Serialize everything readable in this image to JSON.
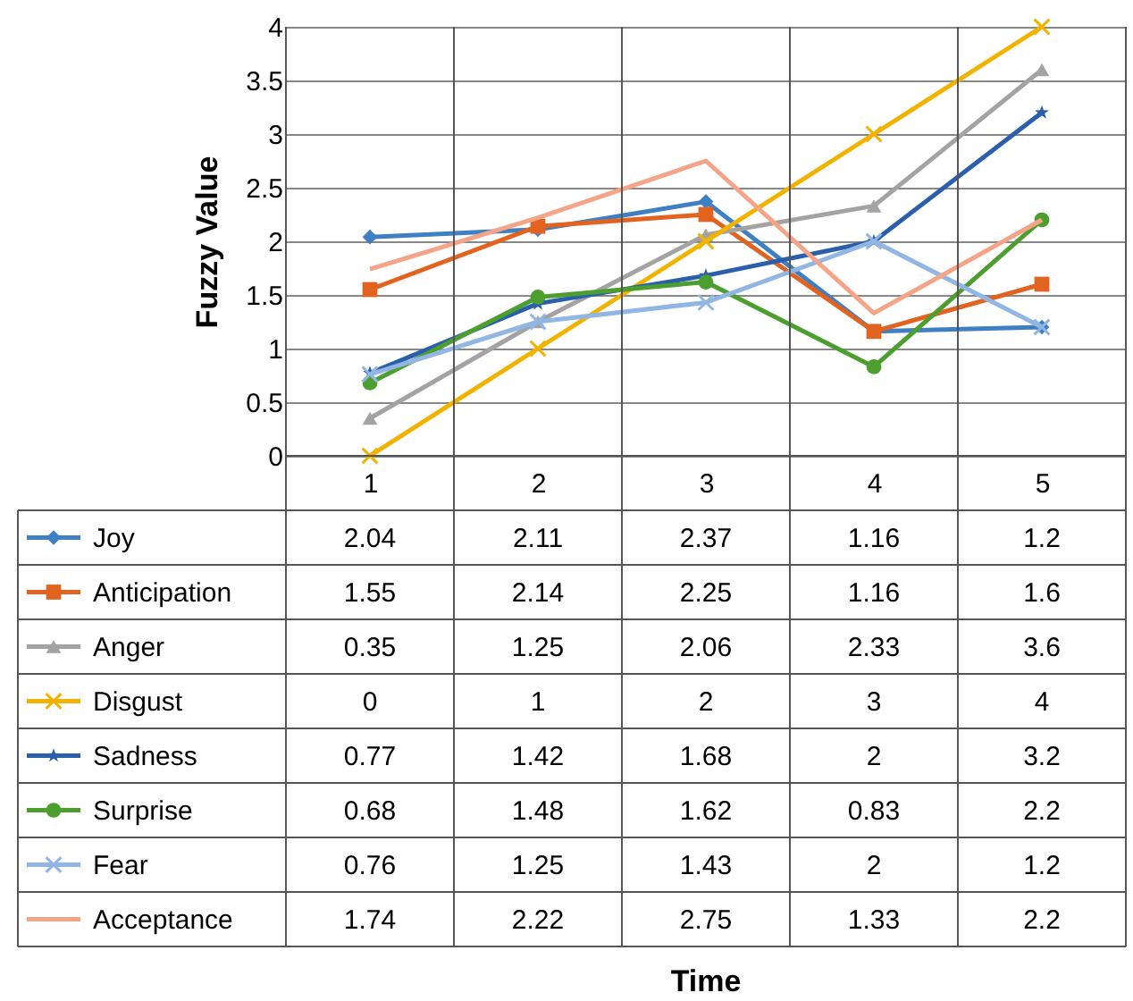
{
  "chart_data": {
    "type": "line",
    "annotations": [
      "Time"
    ],
    "ylabel": "Fuzzy Value",
    "categories": [
      "1",
      "2",
      "3",
      "4",
      "5"
    ],
    "ylim": [
      0,
      4
    ],
    "yticks": [
      0,
      0.5,
      1,
      1.5,
      2,
      2.5,
      3,
      3.5,
      4
    ],
    "grid": "y",
    "legend": "bottom",
    "data_labels": true,
    "series": [
      {
        "name": "Joy",
        "color": "#3f7fc4",
        "marker": "diamond",
        "values": [
          2.04,
          2.11,
          2.37,
          1.16,
          1.2
        ]
      },
      {
        "name": "Anticipation",
        "color": "#e2631f",
        "marker": "square",
        "values": [
          1.55,
          2.14,
          2.25,
          1.16,
          1.6
        ]
      },
      {
        "name": "Anger",
        "color": "#a3a3a3",
        "marker": "triangle",
        "values": [
          0.35,
          1.25,
          2.06,
          2.33,
          3.6
        ]
      },
      {
        "name": "Disgust",
        "color": "#f2b300",
        "marker": "cross",
        "values": [
          0,
          1,
          2,
          3,
          4
        ]
      },
      {
        "name": "Sadness",
        "color": "#2b5fab",
        "marker": "star",
        "values": [
          0.77,
          1.42,
          1.68,
          2,
          3.2
        ]
      },
      {
        "name": "Surprise",
        "color": "#4c9f2e",
        "marker": "circle",
        "values": [
          0.68,
          1.48,
          1.62,
          0.83,
          2.2
        ]
      },
      {
        "name": "Fear",
        "color": "#92b6e4",
        "marker": "cross",
        "values": [
          0.76,
          1.25,
          1.43,
          2,
          1.2
        ]
      },
      {
        "name": "Acceptance",
        "color": "#f5a488",
        "marker": "none",
        "values": [
          1.74,
          2.22,
          2.75,
          1.33,
          2.2
        ]
      }
    ]
  }
}
